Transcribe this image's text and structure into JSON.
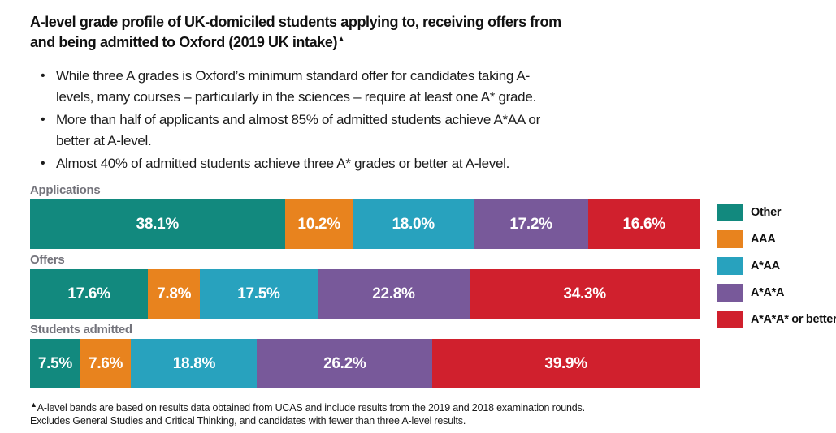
{
  "title": {
    "line1": "A-level grade profile of UK-domiciled students applying to, receiving offers from",
    "line2": "and being admitted to Oxford (2019 UK intake)",
    "marker": "▲"
  },
  "bullets": [
    "While three A grades is Oxford’s minimum standard offer for candidates taking A-levels, many courses – particularly in the sciences – require at least one A* grade.",
    "More than half of applicants and almost 85% of admitted students achieve A*AA or better at A-level.",
    "Almost 40% of admitted students achieve three A* grades or better at A-level."
  ],
  "chart_data": {
    "type": "bar",
    "variant": "horizontal-stacked",
    "unit": "percent",
    "title": "A-level grade profile of UK-domiciled students applying to, receiving offers from and being admitted to Oxford (2019 UK intake)",
    "categories": [
      "Applications",
      "Offers",
      "Students admitted"
    ],
    "series": [
      {
        "name": "Other",
        "color": "#12897E",
        "values": [
          38.1,
          17.6,
          7.5
        ],
        "labels": [
          "38.1%",
          "17.6%",
          "7.5%"
        ]
      },
      {
        "name": "AAA",
        "color": "#E8831E",
        "values": [
          10.2,
          7.8,
          7.6
        ],
        "labels": [
          "10.2%",
          "7.8%",
          "7.6%"
        ]
      },
      {
        "name": "A*AA",
        "color": "#28A2BE",
        "values": [
          18.0,
          17.5,
          18.8
        ],
        "labels": [
          "18.0%",
          "17.5%",
          "18.8%"
        ]
      },
      {
        "name": "A*A*A",
        "color": "#78599A",
        "values": [
          17.2,
          22.8,
          26.2
        ],
        "labels": [
          "17.2%",
          "22.8%",
          "26.2%"
        ]
      },
      {
        "name": "A*A*A* or better",
        "color": "#D0202D",
        "values": [
          16.6,
          34.3,
          39.9
        ],
        "labels": [
          "16.6%",
          "34.3%",
          "39.9%"
        ]
      }
    ],
    "xlim": [
      0,
      100
    ],
    "grid": false,
    "legend_position": "right",
    "value_label_color": "#FFFFFF",
    "category_label_color": "#73737B"
  },
  "footnote": {
    "marker": "▲",
    "line1": "A-level bands are based on results data obtained from UCAS and include results from the 2019 and 2018 examination rounds.",
    "line2": "Excludes General Studies and Critical Thinking, and candidates with fewer than three A-level results."
  }
}
